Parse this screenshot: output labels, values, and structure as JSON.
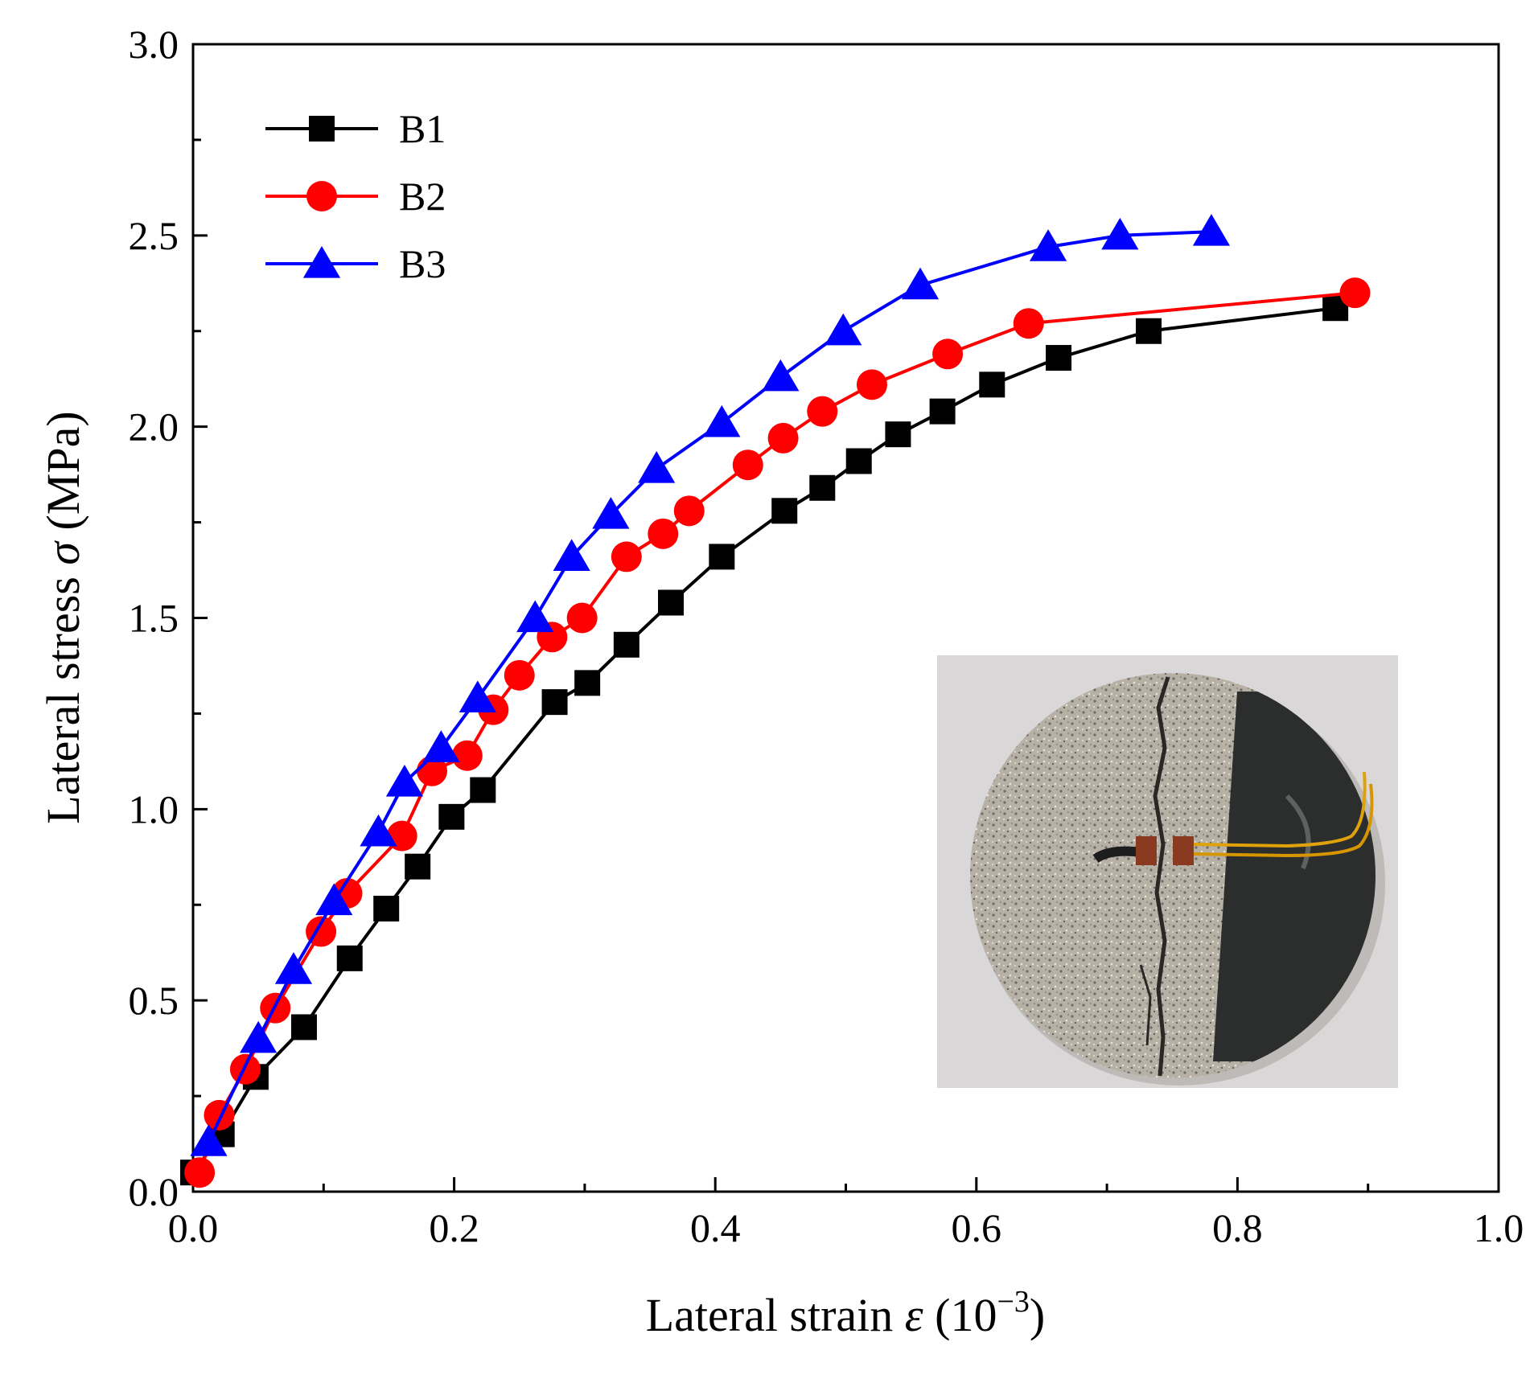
{
  "chart_data": {
    "type": "line",
    "title": "",
    "xlabel": {
      "main": "Lateral strain ",
      "symbol": "ε",
      "unit_open": " (10",
      "unit_sup": "−3",
      "unit_close": ")"
    },
    "ylabel": {
      "main": "Lateral stress ",
      "symbol": "σ",
      "unit": " (MPa)"
    },
    "xlim": [
      0.0,
      1.0
    ],
    "ylim": [
      0.0,
      3.0
    ],
    "x_ticks": [
      "0.0",
      "0.2",
      "0.4",
      "0.6",
      "0.8",
      "1.0"
    ],
    "y_ticks": [
      "0.0",
      "0.5",
      "1.0",
      "1.5",
      "2.0",
      "2.5",
      "3.0"
    ],
    "legend_position": "top-left",
    "series": [
      {
        "name": "B1",
        "color": "#000000",
        "marker": "square",
        "x": [
          0.0,
          0.022,
          0.048,
          0.085,
          0.12,
          0.148,
          0.172,
          0.198,
          0.222,
          0.277,
          0.302,
          0.332,
          0.366,
          0.405,
          0.453,
          0.482,
          0.51,
          0.54,
          0.574,
          0.612,
          0.663,
          0.732,
          0.875
        ],
        "y": [
          0.05,
          0.15,
          0.3,
          0.43,
          0.61,
          0.74,
          0.85,
          0.98,
          1.05,
          1.28,
          1.33,
          1.43,
          1.54,
          1.66,
          1.78,
          1.84,
          1.91,
          1.98,
          2.04,
          2.11,
          2.18,
          2.25,
          2.31
        ]
      },
      {
        "name": "B2",
        "color": "#ff0000",
        "marker": "circle",
        "x": [
          0.005,
          0.02,
          0.04,
          0.063,
          0.098,
          0.118,
          0.16,
          0.183,
          0.21,
          0.23,
          0.25,
          0.275,
          0.298,
          0.332,
          0.36,
          0.38,
          0.425,
          0.452,
          0.482,
          0.52,
          0.578,
          0.64,
          0.89
        ],
        "y": [
          0.05,
          0.2,
          0.32,
          0.48,
          0.68,
          0.78,
          0.93,
          1.1,
          1.14,
          1.26,
          1.35,
          1.45,
          1.5,
          1.66,
          1.72,
          1.78,
          1.9,
          1.97,
          2.04,
          2.11,
          2.19,
          2.27,
          2.35
        ]
      },
      {
        "name": "B3",
        "color": "#0000ff",
        "marker": "triangle",
        "x": [
          0.012,
          0.05,
          0.077,
          0.108,
          0.142,
          0.162,
          0.19,
          0.218,
          0.262,
          0.29,
          0.32,
          0.355,
          0.405,
          0.45,
          0.498,
          0.557,
          0.655,
          0.71,
          0.78
        ],
        "y": [
          0.13,
          0.4,
          0.58,
          0.76,
          0.94,
          1.07,
          1.16,
          1.29,
          1.5,
          1.66,
          1.77,
          1.89,
          2.01,
          2.13,
          2.25,
          2.37,
          2.47,
          2.5,
          2.51
        ]
      }
    ]
  },
  "inset": {
    "description_name": "split-disc-specimen-photo",
    "background_color": "#d9d7d8",
    "rock_color": "#b5aea2",
    "tape_color": "#2b2e2d",
    "wire_color": "#e0a20a"
  }
}
